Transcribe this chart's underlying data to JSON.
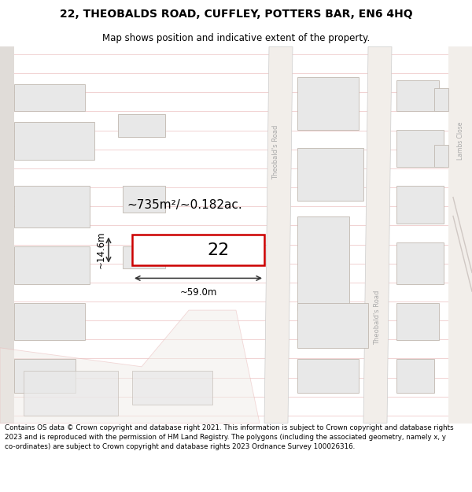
{
  "title": "22, THEOBALDS ROAD, CUFFLEY, POTTERS BAR, EN6 4HQ",
  "subtitle": "Map shows position and indicative extent of the property.",
  "footer": "Contains OS data © Crown copyright and database right 2021. This information is subject to Crown copyright and database rights 2023 and is reproduced with the permission of HM Land Registry. The polygons (including the associated geometry, namely x, y co-ordinates) are subject to Crown copyright and database rights 2023 Ordnance Survey 100026316.",
  "bg_color": "#ffffff",
  "map_bg": "#ffffff",
  "line_color": "#e8b4b4",
  "building_fill": "#e8e8e8",
  "building_edge": "#c0b8b0",
  "highlight_color": "#cc0000",
  "dimension_color": "#333333",
  "road_label_color": "#aaaaaa",
  "area_text": "~735m²/~0.182ac.",
  "number_text": "22",
  "dim_width": "~59.0m",
  "dim_height": "~14.6m",
  "road_label_1": "Theobald's Road",
  "road_label_2": "Theobald's Road",
  "side_label": "Lambs Close"
}
